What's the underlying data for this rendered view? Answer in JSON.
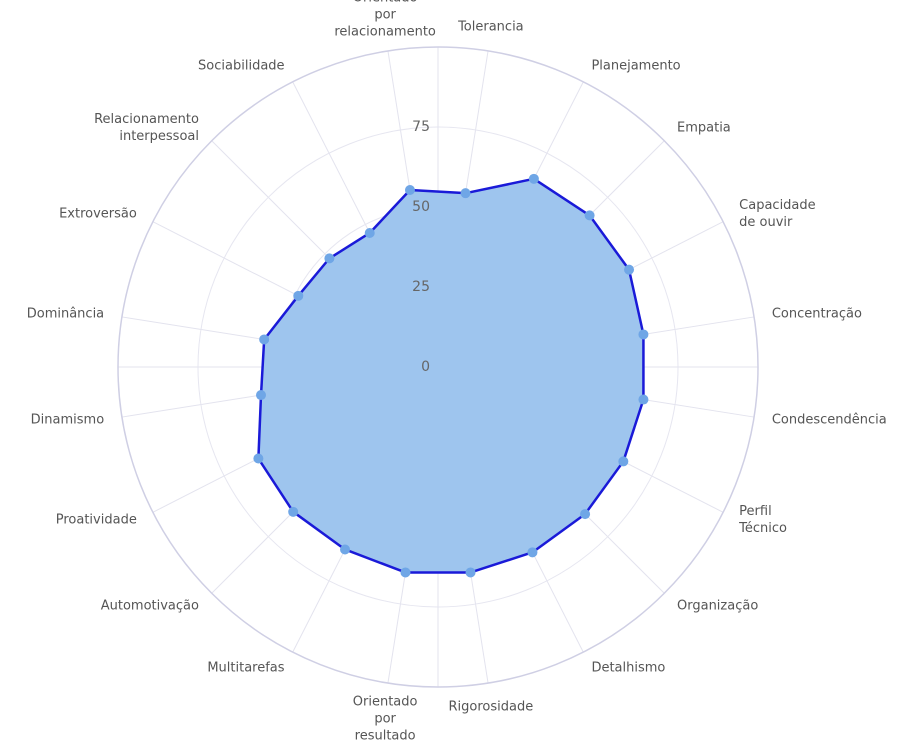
{
  "chart_data": {
    "type": "radar",
    "categories": [
      "Tolerancia",
      "Planejamento",
      "Empatia",
      "Capacidade\nde ouvir",
      "Concentração",
      "Condescendência",
      "Perfil\nTécnico",
      "Organização",
      "Detalhismo",
      "Rigorosidade",
      "Orientado\npor\nresultado",
      "Multitarefas",
      "Automotivação",
      "Proatividade",
      "Dinamismo",
      "Dominância",
      "Extroversão",
      "Relacionamento\ninterpessoal",
      "Sociabilidade",
      "Orientado\npor\nrelacionamento"
    ],
    "values": [
      55,
      66,
      67,
      67,
      65,
      65,
      65,
      65,
      65,
      65,
      65,
      64,
      64,
      63,
      56,
      55,
      49,
      48,
      47,
      56
    ],
    "ylim": [
      0,
      100
    ],
    "yticks": [
      0,
      25,
      50,
      75
    ],
    "grid": true,
    "color": "#1a1ad8",
    "fill_color": "#9ec5ee",
    "marker_color": "#6fa6e6"
  }
}
